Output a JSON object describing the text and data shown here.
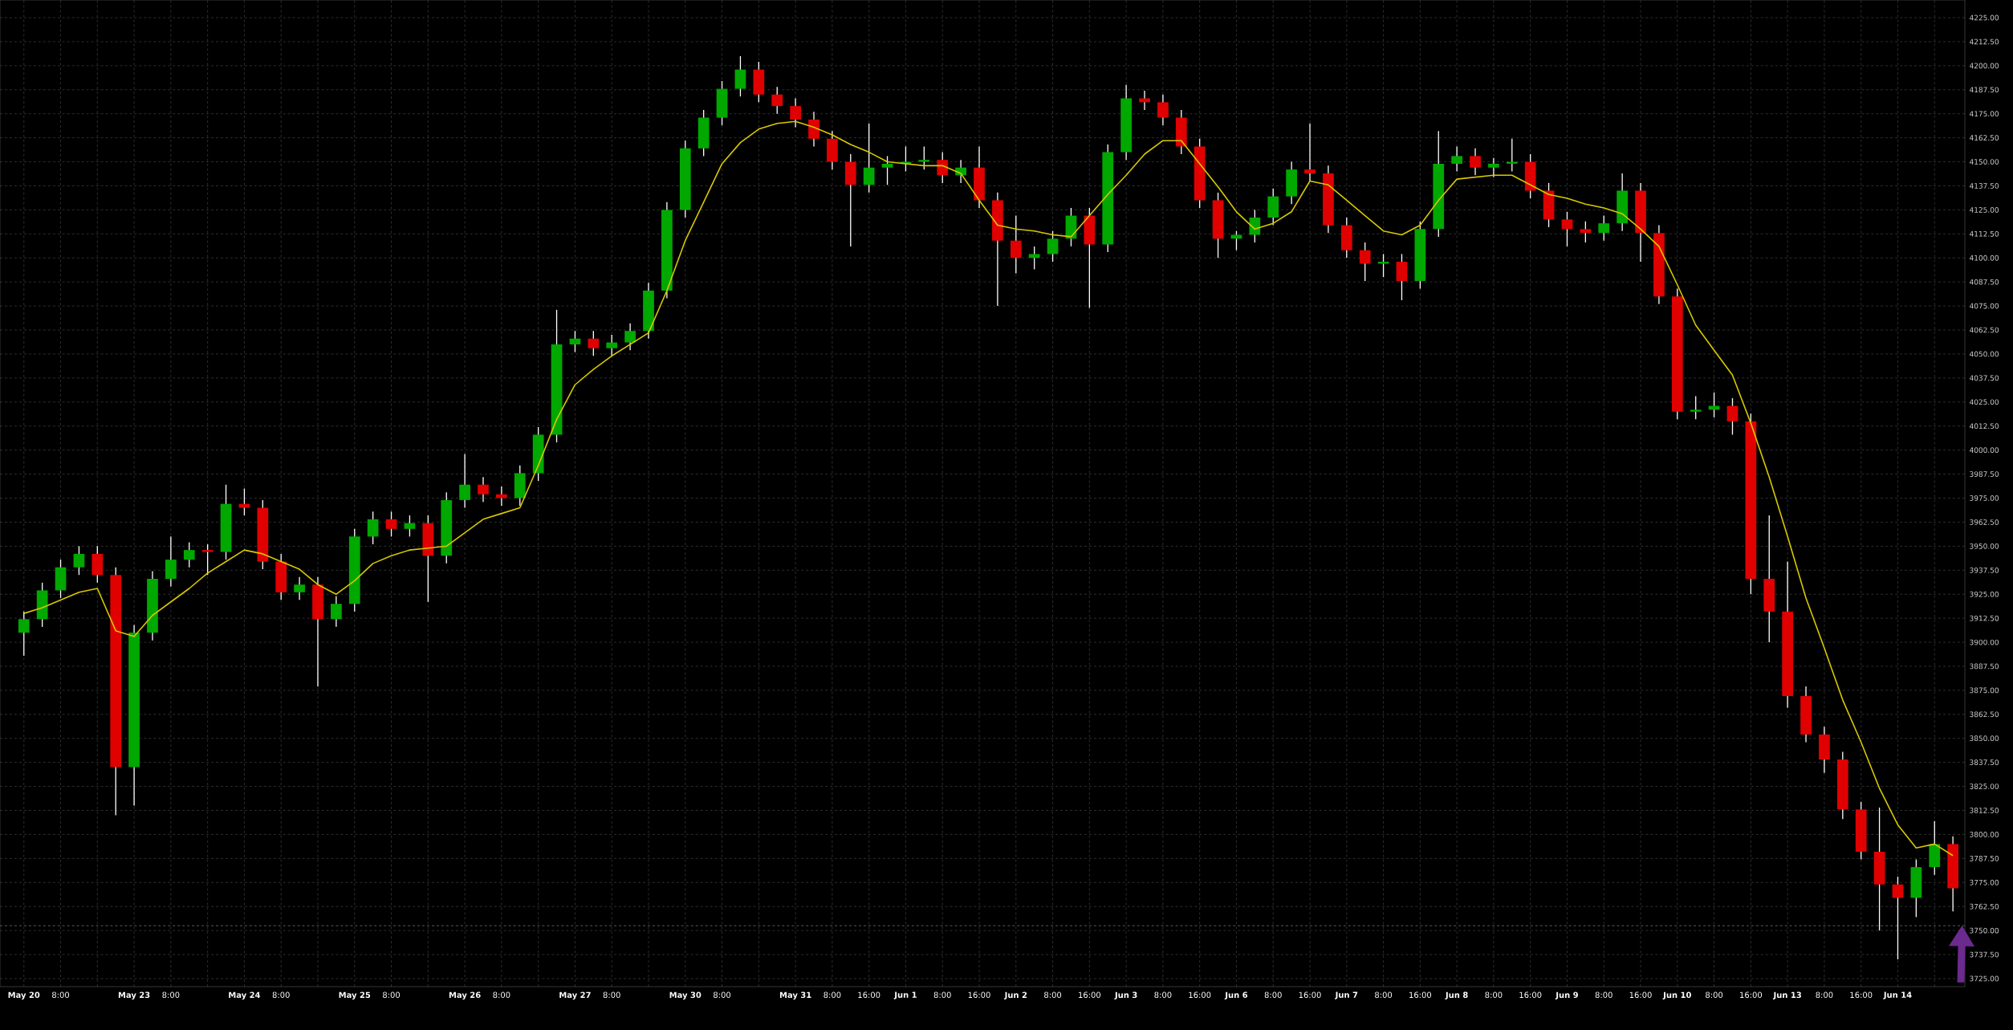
{
  "chart_data": {
    "type": "candlestick",
    "categories": [
      "May 20",
      null,
      "8:00",
      null,
      null,
      null,
      "May 23",
      null,
      "8:00",
      null,
      null,
      null,
      "May 24",
      null,
      "8:00",
      null,
      null,
      null,
      "May 25",
      null,
      "8:00",
      null,
      null,
      null,
      "May 26",
      null,
      "8:00",
      null,
      null,
      null,
      "May 27",
      null,
      "8:00",
      null,
      null,
      null,
      "May 30",
      null,
      "8:00",
      null,
      null,
      null,
      "May 31",
      null,
      "8:00",
      null,
      "16:00",
      null,
      "Jun 1",
      null,
      "8:00",
      null,
      "16:00",
      null,
      "Jun 2",
      null,
      "8:00",
      null,
      "16:00",
      null,
      "Jun 3",
      null,
      "8:00",
      null,
      "16:00",
      null,
      "Jun 6",
      null,
      "8:00",
      null,
      "16:00",
      null,
      "Jun 7",
      null,
      "8:00",
      null,
      "16:00",
      null,
      "Jun 8",
      null,
      "8:00",
      null,
      "16:00",
      null,
      "Jun 9",
      null,
      "8:00",
      null,
      "16:00",
      null,
      "Jun 10",
      null,
      "8:00",
      null,
      "16:00",
      null,
      "Jun 13",
      null,
      "8:00",
      null,
      "16:00",
      null,
      "Jun 14",
      null,
      null,
      null
    ],
    "ohlc": [
      [
        3905,
        3916,
        3893,
        3912
      ],
      [
        3912,
        3931,
        3908,
        3927
      ],
      [
        3927,
        3943,
        3923,
        3939
      ],
      [
        3939,
        3950,
        3935,
        3946
      ],
      [
        3946,
        3950,
        3931,
        3935
      ],
      [
        3935,
        3939,
        3810,
        3835
      ],
      [
        3835,
        3909,
        3815,
        3905
      ],
      [
        3905,
        3937,
        3901,
        3933
      ],
      [
        3933,
        3955,
        3929,
        3943
      ],
      [
        3943,
        3952,
        3939,
        3948
      ],
      [
        3948,
        3951,
        3935,
        3947
      ],
      [
        3947,
        3982,
        3943,
        3972
      ],
      [
        3972,
        3980,
        3966,
        3970
      ],
      [
        3970,
        3974,
        3938,
        3942
      ],
      [
        3942,
        3946,
        3922,
        3926
      ],
      [
        3926,
        3934,
        3922,
        3930
      ],
      [
        3930,
        3934,
        3877,
        3912
      ],
      [
        3912,
        3924,
        3908,
        3920
      ],
      [
        3920,
        3959,
        3916,
        3955
      ],
      [
        3955,
        3968,
        3951,
        3964
      ],
      [
        3964,
        3968,
        3955,
        3959
      ],
      [
        3959,
        3966,
        3955,
        3962
      ],
      [
        3962,
        3966,
        3921,
        3945
      ],
      [
        3945,
        3978,
        3941,
        3974
      ],
      [
        3974,
        3998,
        3970,
        3982
      ],
      [
        3982,
        3986,
        3973,
        3977
      ],
      [
        3977,
        3981,
        3971,
        3975
      ],
      [
        3975,
        3992,
        3971,
        3988
      ],
      [
        3988,
        4012,
        3984,
        4008
      ],
      [
        4008,
        4073,
        4004,
        4055
      ],
      [
        4055,
        4062,
        4051,
        4058
      ],
      [
        4058,
        4062,
        4049,
        4053
      ],
      [
        4053,
        4060,
        4049,
        4056
      ],
      [
        4056,
        4066,
        4052,
        4062
      ],
      [
        4062,
        4087,
        4058,
        4083
      ],
      [
        4083,
        4129,
        4079,
        4125
      ],
      [
        4125,
        4161,
        4121,
        4157
      ],
      [
        4157,
        4177,
        4153,
        4173
      ],
      [
        4173,
        4192,
        4169,
        4188
      ],
      [
        4188,
        4205,
        4184,
        4198
      ],
      [
        4198,
        4202,
        4181,
        4185
      ],
      [
        4185,
        4189,
        4175,
        4179
      ],
      [
        4179,
        4183,
        4168,
        4172
      ],
      [
        4172,
        4176,
        4158,
        4162
      ],
      [
        4162,
        4166,
        4146,
        4150
      ],
      [
        4150,
        4154,
        4106,
        4138
      ],
      [
        4138,
        4170,
        4134,
        4147
      ],
      [
        4147,
        4153,
        4138,
        4149
      ],
      [
        4149,
        4158,
        4145,
        4150
      ],
      [
        4150,
        4158,
        4146,
        4151
      ],
      [
        4151,
        4155,
        4139,
        4143
      ],
      [
        4143,
        4151,
        4139,
        4147
      ],
      [
        4147,
        4158,
        4126,
        4130
      ],
      [
        4130,
        4134,
        4075,
        4109
      ],
      [
        4109,
        4122,
        4092,
        4100
      ],
      [
        4100,
        4106,
        4094,
        4102
      ],
      [
        4102,
        4114,
        4098,
        4110
      ],
      [
        4110,
        4126,
        4106,
        4122
      ],
      [
        4122,
        4126,
        4074,
        4107
      ],
      [
        4107,
        4159,
        4103,
        4155
      ],
      [
        4155,
        4190,
        4151,
        4183
      ],
      [
        4183,
        4187,
        4177,
        4181
      ],
      [
        4181,
        4185,
        4169,
        4173
      ],
      [
        4173,
        4177,
        4154,
        4158
      ],
      [
        4158,
        4162,
        4126,
        4130
      ],
      [
        4130,
        4134,
        4100,
        4110
      ],
      [
        4110,
        4114,
        4104,
        4112
      ],
      [
        4112,
        4125,
        4108,
        4121
      ],
      [
        4121,
        4136,
        4117,
        4132
      ],
      [
        4132,
        4150,
        4128,
        4146
      ],
      [
        4146,
        4170,
        4140,
        4144
      ],
      [
        4144,
        4148,
        4113,
        4117
      ],
      [
        4117,
        4121,
        4100,
        4104
      ],
      [
        4104,
        4108,
        4088,
        4097
      ],
      [
        4097,
        4102,
        4090,
        4098
      ],
      [
        4098,
        4102,
        4078,
        4088
      ],
      [
        4088,
        4119,
        4084,
        4115
      ],
      [
        4115,
        4166,
        4111,
        4149
      ],
      [
        4149,
        4158,
        4145,
        4153
      ],
      [
        4153,
        4157,
        4143,
        4147
      ],
      [
        4147,
        4152,
        4142,
        4149
      ],
      [
        4149,
        4162,
        4145,
        4150
      ],
      [
        4150,
        4154,
        4131,
        4135
      ],
      [
        4135,
        4139,
        4116,
        4120
      ],
      [
        4120,
        4124,
        4106,
        4115
      ],
      [
        4115,
        4119,
        4108,
        4113
      ],
      [
        4113,
        4122,
        4109,
        4118
      ],
      [
        4118,
        4144,
        4114,
        4135
      ],
      [
        4135,
        4139,
        4098,
        4113
      ],
      [
        4113,
        4117,
        4076,
        4080
      ],
      [
        4080,
        4084,
        4016,
        4020
      ],
      [
        4020,
        4028,
        4016,
        4021
      ],
      [
        4021,
        4030,
        4017,
        4023
      ],
      [
        4023,
        4027,
        4008,
        4015
      ],
      [
        4015,
        4019,
        3925,
        3933
      ],
      [
        3933,
        3966,
        3900,
        3916
      ],
      [
        3916,
        3942,
        3866,
        3872
      ],
      [
        3872,
        3877,
        3848,
        3852
      ],
      [
        3852,
        3856,
        3832,
        3839
      ],
      [
        3839,
        3843,
        3808,
        3813
      ],
      [
        3813,
        3817,
        3787,
        3791
      ],
      [
        3791,
        3814,
        3750,
        3774
      ],
      [
        3774,
        3778,
        3735,
        3767
      ],
      [
        3767,
        3787,
        3757,
        3783
      ],
      [
        3783,
        3807,
        3779,
        3795
      ],
      [
        3795,
        3799,
        3760,
        3772
      ]
    ],
    "colors": [
      "#00a800",
      "#00a800",
      "#00a800",
      "#00a800",
      "#e00000",
      "#e00000",
      "#00a800",
      "#00a800",
      "#00a800",
      "#00a800",
      "#e00000",
      "#00a800",
      "#e00000",
      "#e00000",
      "#e00000",
      "#00a800",
      "#e00000",
      "#00a800",
      "#00a800",
      "#00a800",
      "#e00000",
      "#00a800",
      "#e00000",
      "#00a800",
      "#00a800",
      "#e00000",
      "#e00000",
      "#00a800",
      "#00a800",
      "#00a800",
      "#00a800",
      "#e00000",
      "#00a800",
      "#00a800",
      "#00a800",
      "#00a800",
      "#00a800",
      "#00a800",
      "#00a800",
      "#00a800",
      "#e00000",
      "#e00000",
      "#e00000",
      "#e00000",
      "#e00000",
      "#e00000",
      "#00a800",
      "#00a800",
      "#00a800",
      "#00a800",
      "#e00000",
      "#00a800",
      "#e00000",
      "#e00000",
      "#e00000",
      "#00a800",
      "#00a800",
      "#00a800",
      "#e00000",
      "#00a800",
      "#00a800",
      "#e00000",
      "#e00000",
      "#e00000",
      "#e00000",
      "#e00000",
      "#00a800",
      "#00a800",
      "#00a800",
      "#00a800",
      "#e00000",
      "#e00000",
      "#e00000",
      "#e00000",
      "#00a800",
      "#e00000",
      "#00a800",
      "#00a800",
      "#00a800",
      "#e00000",
      "#00a800",
      "#00a800",
      "#e00000",
      "#e00000",
      "#e00000",
      "#e00000",
      "#00a800",
      "#00a800",
      "#e00000",
      "#e00000",
      "#e00000",
      "#00a800",
      "#00a800",
      "#e00000",
      "#e00000",
      "#e00000",
      "#e00000",
      "#e00000",
      "#e00000",
      "#e00000",
      "#e00000",
      "#e00000",
      "#e00000",
      "#00a800",
      "#00a800",
      "#e00000"
    ],
    "series": [
      {
        "type": "line",
        "color": "#d8c800",
        "values": [
          3915,
          3918,
          3922,
          3926,
          3928,
          3906,
          3903,
          3914,
          3921,
          3928,
          3936,
          3942,
          3948,
          3946,
          3942,
          3938,
          3930,
          3925,
          3932,
          3941,
          3945,
          3948,
          3949,
          3950,
          3957,
          3964,
          3967,
          3970,
          3992,
          4016,
          4034,
          4042,
          4049,
          4055,
          4061,
          4083,
          4109,
          4129,
          4149,
          4160,
          4167,
          4170,
          4171,
          4168,
          4164,
          4159,
          4155,
          4150,
          4149,
          4148,
          4148,
          4144,
          4130,
          4117,
          4115,
          4114,
          4112,
          4111,
          4122,
          4133,
          4143,
          4154,
          4161,
          4161,
          4149,
          4137,
          4124,
          4115,
          4118,
          4124,
          4140,
          4138,
          4130,
          4122,
          4114,
          4112,
          4117,
          4130,
          4141,
          4142,
          4143,
          4143,
          4138,
          4133,
          4131,
          4128,
          4126,
          4123,
          4115,
          4106,
          4086,
          4065,
          4052,
          4039,
          4014,
          3986,
          3955,
          3923,
          3897,
          3870,
          3848,
          3824,
          3805,
          3793,
          3795,
          3789
        ]
      }
    ],
    "ylim": [
      3720.8,
      4234.2
    ],
    "yticks": [
      {
        "value": 3725,
        "label": "3725.00"
      },
      {
        "value": 3737.5,
        "label": "3737.50"
      },
      {
        "value": 3750,
        "label": "3750.00"
      },
      {
        "value": 3762.5,
        "label": "3762.50"
      },
      {
        "value": 3775,
        "label": "3775.00"
      },
      {
        "value": 3787.5,
        "label": "3787.50"
      },
      {
        "value": 3800,
        "label": "3800.00"
      },
      {
        "value": 3812.5,
        "label": "3812.50"
      },
      {
        "value": 3825,
        "label": "3825.00"
      },
      {
        "value": 3837.5,
        "label": "3837.50"
      },
      {
        "value": 3850,
        "label": "3850.00"
      },
      {
        "value": 3862.5,
        "label": "3862.50"
      },
      {
        "value": 3875,
        "label": "3875.00"
      },
      {
        "value": 3887.5,
        "label": "3887.50"
      },
      {
        "value": 3900,
        "label": "3900.00"
      },
      {
        "value": 3912.5,
        "label": "3912.50"
      },
      {
        "value": 3925,
        "label": "3925.00"
      },
      {
        "value": 3937.5,
        "label": "3937.50"
      },
      {
        "value": 3950,
        "label": "3950.00"
      },
      {
        "value": 3962.5,
        "label": "3962.50"
      },
      {
        "value": 3975,
        "label": "3975.00"
      },
      {
        "value": 3987.5,
        "label": "3987.50"
      },
      {
        "value": 4000,
        "label": "4000.00"
      },
      {
        "value": 4012.5,
        "label": "4012.50"
      },
      {
        "value": 4025,
        "label": "4025.00"
      },
      {
        "value": 4037.5,
        "label": "4037.50"
      },
      {
        "value": 4050,
        "label": "4050.00"
      },
      {
        "value": 4062.5,
        "label": "4062.50"
      },
      {
        "value": 4075,
        "label": "4075.00"
      },
      {
        "value": 4087.5,
        "label": "4087.50"
      },
      {
        "value": 4100,
        "label": "4100.00"
      },
      {
        "value": 4112.5,
        "label": "4112.50"
      },
      {
        "value": 4125,
        "label": "4125.00"
      },
      {
        "value": 4137.5,
        "label": "4137.50"
      },
      {
        "value": 4150,
        "label": "4150.00"
      },
      {
        "value": 4162.5,
        "label": "4162.50"
      },
      {
        "value": 4175,
        "label": "4175.00"
      },
      {
        "value": 4187.5,
        "label": "4187.50"
      },
      {
        "value": 4200,
        "label": "4200.00"
      },
      {
        "value": 4212.5,
        "label": "4212.50"
      },
      {
        "value": 4225,
        "label": "4225.00"
      }
    ],
    "grid": true,
    "ref_lines": [
      {
        "axis": "y",
        "value": 3752.5,
        "color": "#5a5a5a",
        "line_style": "dashed"
      }
    ]
  }
}
